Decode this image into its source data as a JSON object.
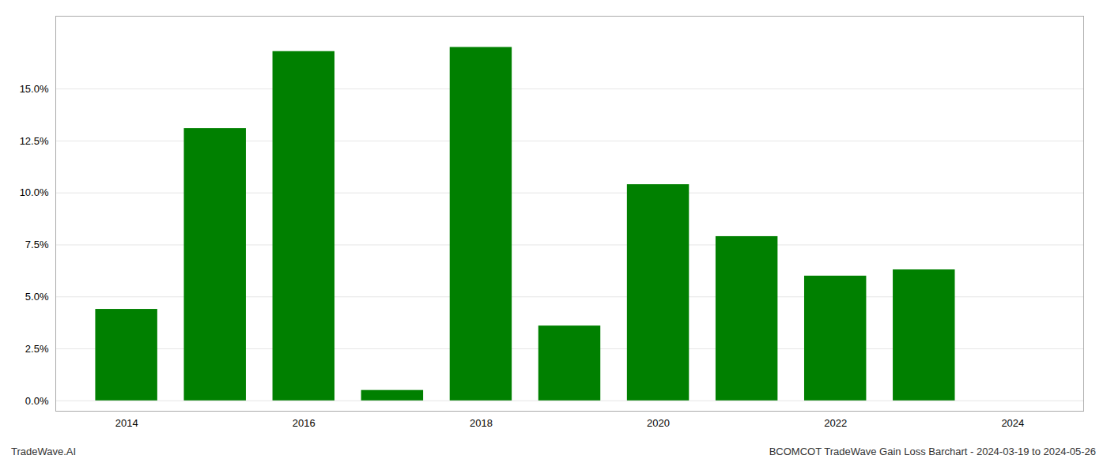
{
  "chart_data": {
    "type": "bar",
    "x": [
      2014,
      2015,
      2016,
      2017,
      2018,
      2019,
      2020,
      2021,
      2022,
      2023
    ],
    "values": [
      0.044,
      0.131,
      0.168,
      0.005,
      0.17,
      0.036,
      0.104,
      0.079,
      0.06,
      0.063
    ],
    "color": "#008000",
    "xlim": [
      2013.2,
      2024.8
    ],
    "xticks": [
      2014,
      2016,
      2018,
      2020,
      2022,
      2024
    ],
    "ylim": [
      -0.005,
      0.185
    ],
    "yticks": [
      {
        "value": 0.0,
        "label": "0.0%"
      },
      {
        "value": 0.025,
        "label": "2.5%"
      },
      {
        "value": 0.05,
        "label": "5.0%"
      },
      {
        "value": 0.075,
        "label": "7.5%"
      },
      {
        "value": 0.1,
        "label": "10.0%"
      },
      {
        "value": 0.125,
        "label": "12.5%"
      },
      {
        "value": 0.15,
        "label": "15.0%"
      }
    ],
    "grid": true,
    "annotations": [
      "TradeWave.AI",
      "BCOMCOT TradeWave Gain Loss Barchart - 2024-03-19 to 2024-05-26"
    ]
  }
}
